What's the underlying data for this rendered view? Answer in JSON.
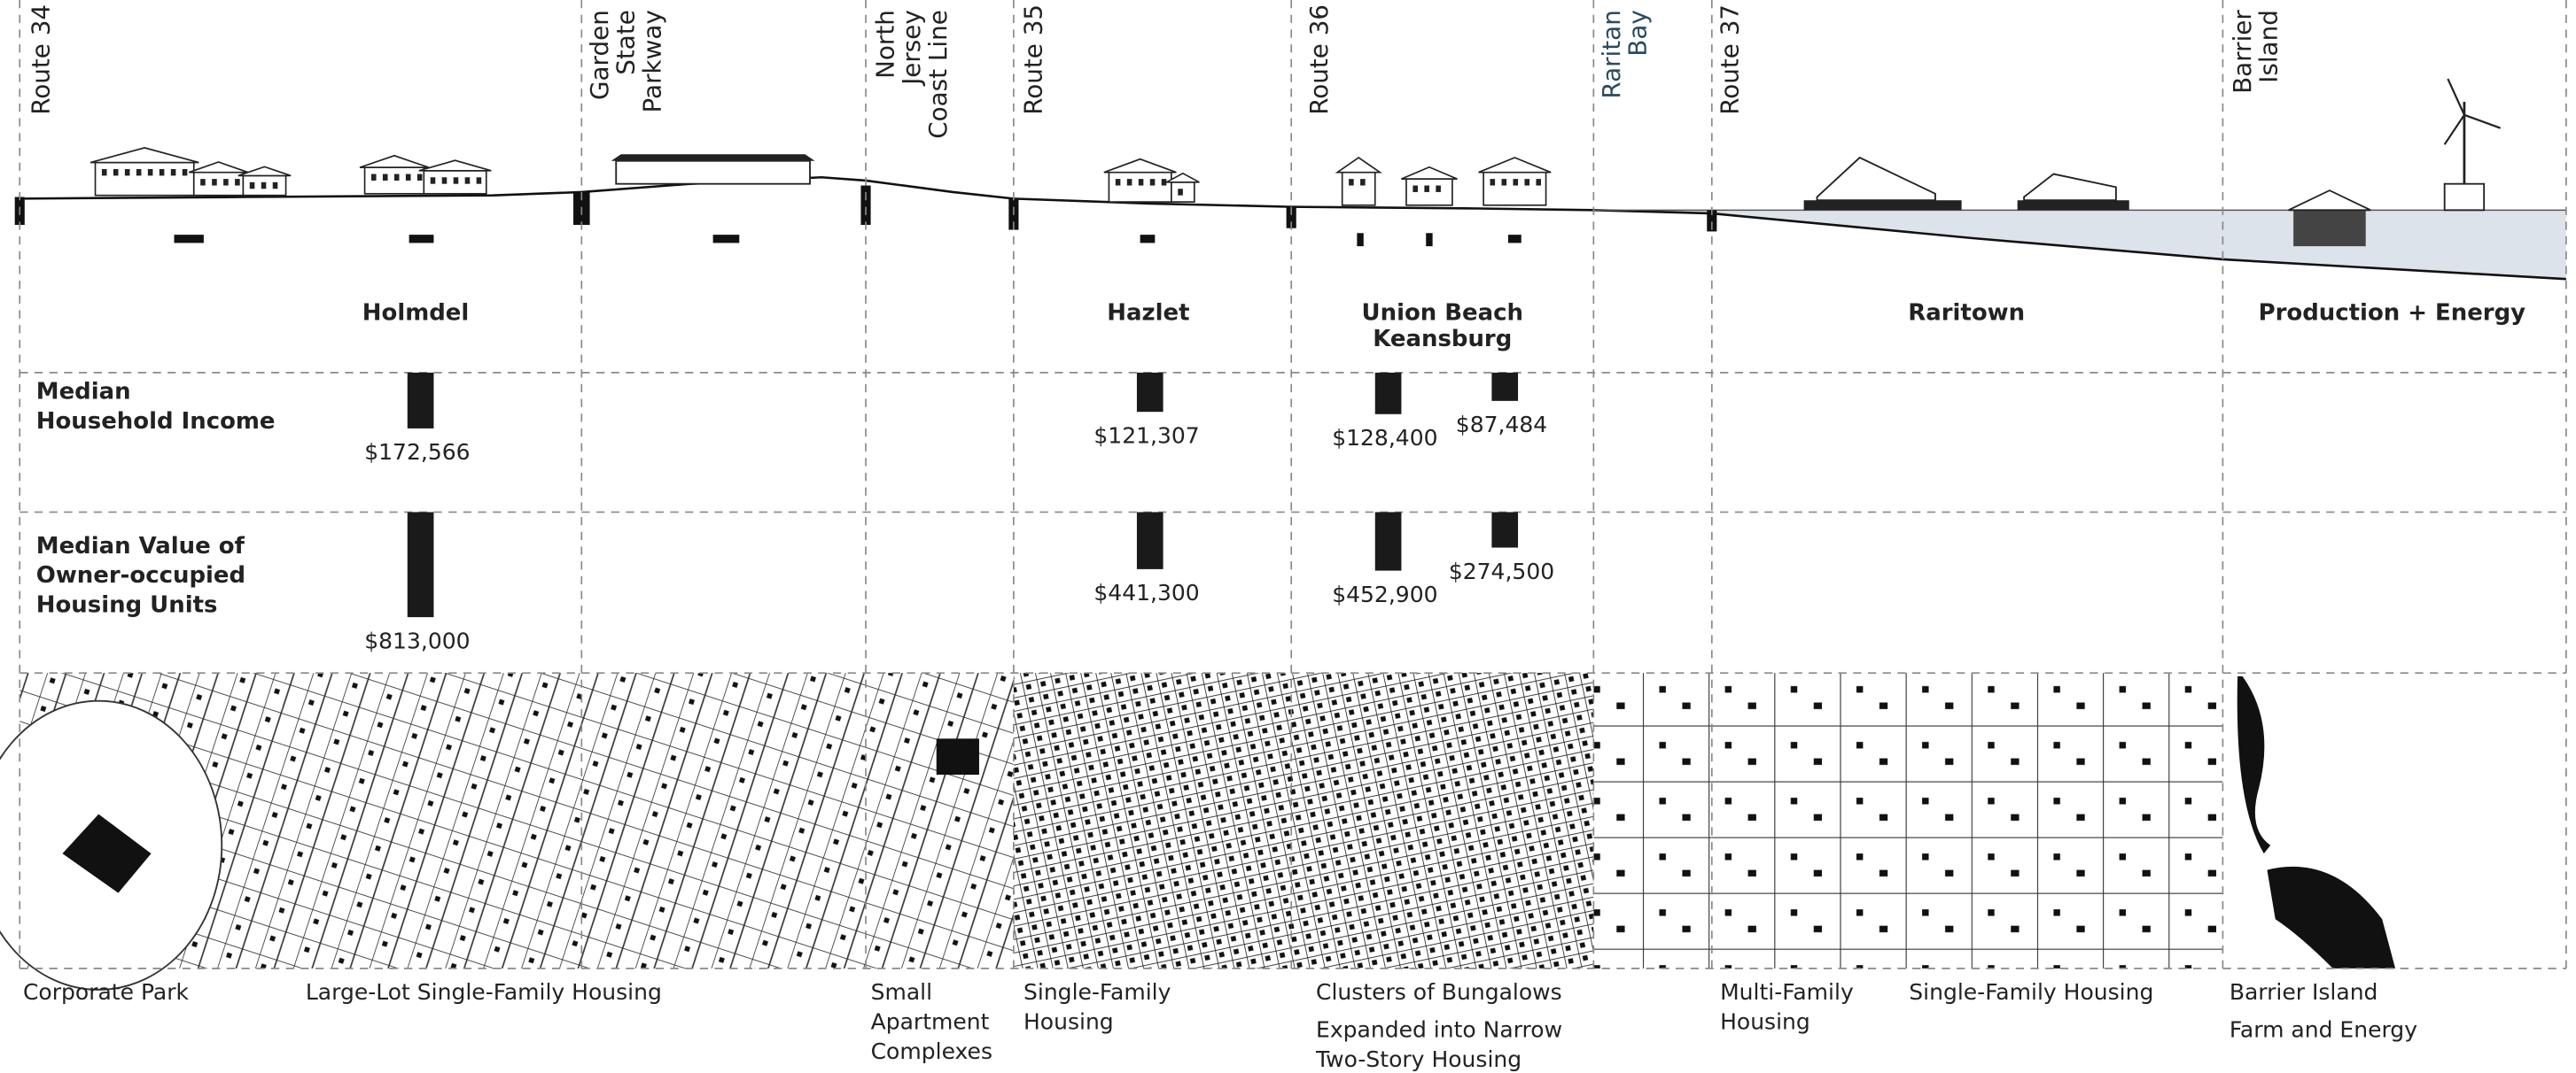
{
  "columns": [
    {
      "label": [
        "Route 34"
      ]
    },
    {
      "label": [
        "Garden",
        "State",
        "Parkway"
      ]
    },
    {
      "label": [
        "North",
        "Jersey",
        "Coast Line"
      ]
    },
    {
      "label": [
        "Route 35"
      ]
    },
    {
      "label": [
        "Route 36"
      ]
    },
    {
      "label": [
        "Raritan",
        "Bay"
      ]
    },
    {
      "label": [
        "Route 37"
      ]
    },
    {
      "label": [
        "Barrier",
        "Island"
      ]
    }
  ],
  "places": [
    [
      "Holmdel"
    ],
    [
      "Hazlet"
    ],
    [
      "Union Beach",
      "Keansburg"
    ],
    [
      "Raritown"
    ],
    [
      "Production + Energy"
    ]
  ],
  "income": {
    "label": [
      "Median",
      "Household Income"
    ],
    "values": [
      172566,
      121307,
      128400,
      87484
    ],
    "value_labels": [
      "$172,566",
      "$121,307",
      "$128,400",
      "$87,484"
    ]
  },
  "home_value": {
    "label": [
      "Median Value of",
      "Owner-occupied",
      "Housing Units"
    ],
    "values": [
      813000,
      441300,
      452900,
      274500
    ],
    "value_labels": [
      "$813,000",
      "$441,300",
      "$452,900",
      "$274,500"
    ]
  },
  "typologies": [
    [
      "Corporate Park"
    ],
    [
      "Large-Lot Single-Family Housing"
    ],
    [
      "Small",
      "Apartment",
      "Complexes"
    ],
    [
      "Single-Family",
      "Housing"
    ],
    [
      "Clusters of Bungalows"
    ],
    [
      "Expanded into Narrow",
      "Two-Story Housing"
    ],
    [
      "Multi-Family",
      "Housing"
    ],
    [
      "Single-Family Housing"
    ],
    [
      "Barrier Island"
    ],
    [
      "Farm and Energy"
    ]
  ]
}
